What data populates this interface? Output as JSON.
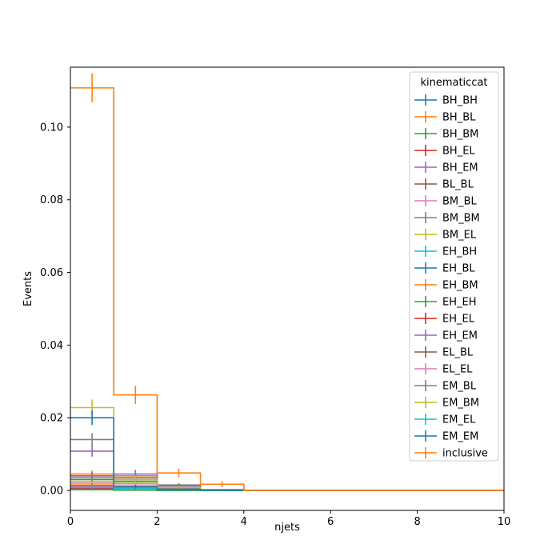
{
  "chart_data": {
    "type": "histogram-step",
    "xlabel": "njets",
    "ylabel": "Events",
    "xlim": [
      0,
      10
    ],
    "ylim": [
      -0.0055,
      0.1165
    ],
    "x_ticks": [
      0,
      2,
      4,
      6,
      8,
      10
    ],
    "y_ticks": [
      0.0,
      0.02,
      0.04,
      0.06,
      0.08,
      0.1
    ],
    "x_tick_labels": [
      "0",
      "2",
      "4",
      "6",
      "8",
      "10"
    ],
    "y_tick_labels": [
      "0.00",
      "0.02",
      "0.04",
      "0.06",
      "0.08",
      "0.10"
    ],
    "bin_edges": [
      0,
      1,
      2,
      3,
      4,
      5,
      6,
      7,
      8,
      9,
      10
    ],
    "legend": {
      "title": "kinematiccat",
      "placement": "top-right"
    },
    "series": [
      {
        "name": "BH_BH",
        "color": "#1f77b4",
        "values": [
          0.0005,
          0.0002,
          0,
          0,
          0,
          0,
          0,
          0,
          0,
          0
        ],
        "errors": [
          0.0003,
          0.0002,
          0,
          0,
          0,
          0,
          0,
          0,
          0,
          0
        ]
      },
      {
        "name": "BH_BL",
        "color": "#ff7f0e",
        "values": [
          0.0045,
          0.004,
          0.0005,
          0.0001,
          0,
          0,
          0,
          0,
          0,
          0
        ],
        "errors": [
          0.001,
          0.001,
          0.0003,
          0.0001,
          0,
          0,
          0,
          0,
          0,
          0
        ]
      },
      {
        "name": "BH_BM",
        "color": "#2ca02c",
        "values": [
          0.003,
          0.0025,
          0.0004,
          0.0001,
          0,
          0,
          0,
          0,
          0,
          0
        ],
        "errors": [
          0.0008,
          0.0008,
          0.0002,
          0.0001,
          0,
          0,
          0,
          0,
          0,
          0
        ]
      },
      {
        "name": "BH_EL",
        "color": "#d62728",
        "values": [
          0.004,
          0.0035,
          0.0006,
          0.0001,
          0,
          0,
          0,
          0,
          0,
          0
        ],
        "errors": [
          0.001,
          0.001,
          0.0003,
          0.0001,
          0,
          0,
          0,
          0,
          0,
          0
        ]
      },
      {
        "name": "BH_EM",
        "color": "#9467bd",
        "values": [
          0.0108,
          0.0045,
          0.0012,
          0.0002,
          0,
          0,
          0,
          0,
          0,
          0
        ],
        "errors": [
          0.0015,
          0.0012,
          0.0006,
          0.0002,
          0,
          0,
          0,
          0,
          0,
          0
        ]
      },
      {
        "name": "BL_BL",
        "color": "#8c564b",
        "values": [
          0.001,
          0.0012,
          0.0003,
          0.0001,
          0,
          0,
          0,
          0,
          0,
          0
        ],
        "errors": [
          0.0005,
          0.0005,
          0.0002,
          0.0001,
          0,
          0,
          0,
          0,
          0,
          0
        ]
      },
      {
        "name": "BM_BL",
        "color": "#e377c2",
        "values": [
          0.002,
          0.0018,
          0.0004,
          0.0001,
          0,
          0,
          0,
          0,
          0,
          0
        ],
        "errors": [
          0.0006,
          0.0006,
          0.0002,
          0.0001,
          0,
          0,
          0,
          0,
          0,
          0
        ]
      },
      {
        "name": "BM_BM",
        "color": "#7f7f7f",
        "values": [
          0.014,
          0.0035,
          0.0015,
          0.0002,
          0,
          0,
          0,
          0,
          0,
          0
        ],
        "errors": [
          0.0018,
          0.001,
          0.0005,
          0.0002,
          0,
          0,
          0,
          0,
          0,
          0
        ]
      },
      {
        "name": "BM_EL",
        "color": "#bcbd22",
        "values": [
          0.0025,
          0.002,
          0.0003,
          0.0001,
          0,
          0,
          0,
          0,
          0,
          0
        ],
        "errors": [
          0.0007,
          0.0006,
          0.0002,
          0.0001,
          0,
          0,
          0,
          0,
          0,
          0
        ]
      },
      {
        "name": "EH_BH",
        "color": "#17becf",
        "values": [
          0.0003,
          0.0001,
          0,
          0,
          0,
          0,
          0,
          0,
          0,
          0
        ],
        "errors": [
          0.0002,
          0.0001,
          0,
          0,
          0,
          0,
          0,
          0,
          0,
          0
        ]
      },
      {
        "name": "EH_BL",
        "color": "#1f77b4",
        "values": [
          0.0008,
          0.001,
          0.0002,
          0.0001,
          0,
          0,
          0,
          0,
          0,
          0
        ],
        "errors": [
          0.0004,
          0.0004,
          0.0002,
          0.0001,
          0,
          0,
          0,
          0,
          0,
          0
        ]
      },
      {
        "name": "EH_BM",
        "color": "#ff7f0e",
        "values": [
          0.0015,
          0.0012,
          0.0002,
          0.0001,
          0,
          0,
          0,
          0,
          0,
          0
        ],
        "errors": [
          0.0005,
          0.0005,
          0.0002,
          0.0001,
          0,
          0,
          0,
          0,
          0,
          0
        ]
      },
      {
        "name": "EH_EH",
        "color": "#2ca02c",
        "values": [
          0.0002,
          0.0001,
          0,
          0,
          0,
          0,
          0,
          0,
          0,
          0
        ],
        "errors": [
          0.0002,
          0.0001,
          0,
          0,
          0,
          0,
          0,
          0,
          0,
          0
        ]
      },
      {
        "name": "EH_EL",
        "color": "#d62728",
        "values": [
          0.0006,
          0.0008,
          0.0002,
          0.0001,
          0,
          0,
          0,
          0,
          0,
          0
        ],
        "errors": [
          0.0003,
          0.0004,
          0.0002,
          0.0001,
          0,
          0,
          0,
          0,
          0,
          0
        ]
      },
      {
        "name": "EH_EM",
        "color": "#9467bd",
        "values": [
          0.004,
          0.003,
          0.0005,
          0.0001,
          0,
          0,
          0,
          0,
          0,
          0
        ],
        "errors": [
          0.001,
          0.0009,
          0.0003,
          0.0001,
          0,
          0,
          0,
          0,
          0,
          0
        ]
      },
      {
        "name": "EL_BL",
        "color": "#8c564b",
        "values": [
          0.0012,
          0.001,
          0.0002,
          0.0001,
          0,
          0,
          0,
          0,
          0,
          0
        ],
        "errors": [
          0.0005,
          0.0005,
          0.0002,
          0.0001,
          0,
          0,
          0,
          0,
          0,
          0
        ]
      },
      {
        "name": "EL_EL",
        "color": "#e377c2",
        "values": [
          0.001,
          0.0008,
          0.0002,
          0.0001,
          0,
          0,
          0,
          0,
          0,
          0
        ],
        "errors": [
          0.0005,
          0.0004,
          0.0002,
          0.0001,
          0,
          0,
          0,
          0,
          0,
          0
        ]
      },
      {
        "name": "EM_BL",
        "color": "#7f7f7f",
        "values": [
          0.0035,
          0.003,
          0.0004,
          0.0001,
          0,
          0,
          0,
          0,
          0,
          0
        ],
        "errors": [
          0.0009,
          0.0009,
          0.0003,
          0.0001,
          0,
          0,
          0,
          0,
          0,
          0
        ]
      },
      {
        "name": "EM_BM",
        "color": "#bcbd22",
        "values": [
          0.0228,
          0.003,
          0.0008,
          0.0002,
          0,
          0,
          0,
          0,
          0,
          0
        ],
        "errors": [
          0.0022,
          0.001,
          0.0004,
          0.0002,
          0,
          0,
          0,
          0,
          0,
          0
        ]
      },
      {
        "name": "EM_EL",
        "color": "#17becf",
        "values": [
          0.0008,
          0.0006,
          0.0002,
          0.0001,
          0,
          0,
          0,
          0,
          0,
          0
        ],
        "errors": [
          0.0004,
          0.0004,
          0.0002,
          0.0001,
          0,
          0,
          0,
          0,
          0,
          0
        ]
      },
      {
        "name": "EM_EM",
        "color": "#1f77b4",
        "values": [
          0.02,
          0.001,
          0.0003,
          0.0001,
          0,
          0,
          0,
          0,
          0,
          0
        ],
        "errors": [
          0.002,
          0.0005,
          0.0002,
          0.0001,
          0,
          0,
          0,
          0,
          0,
          0
        ]
      },
      {
        "name": "inclusive",
        "color": "#ff7f0e",
        "values": [
          0.1108,
          0.0263,
          0.0048,
          0.0017,
          0,
          0,
          0,
          0,
          0,
          0
        ],
        "errors": [
          0.004,
          0.0025,
          0.0012,
          0.0008,
          0,
          0,
          0,
          0,
          0,
          0
        ]
      }
    ]
  }
}
